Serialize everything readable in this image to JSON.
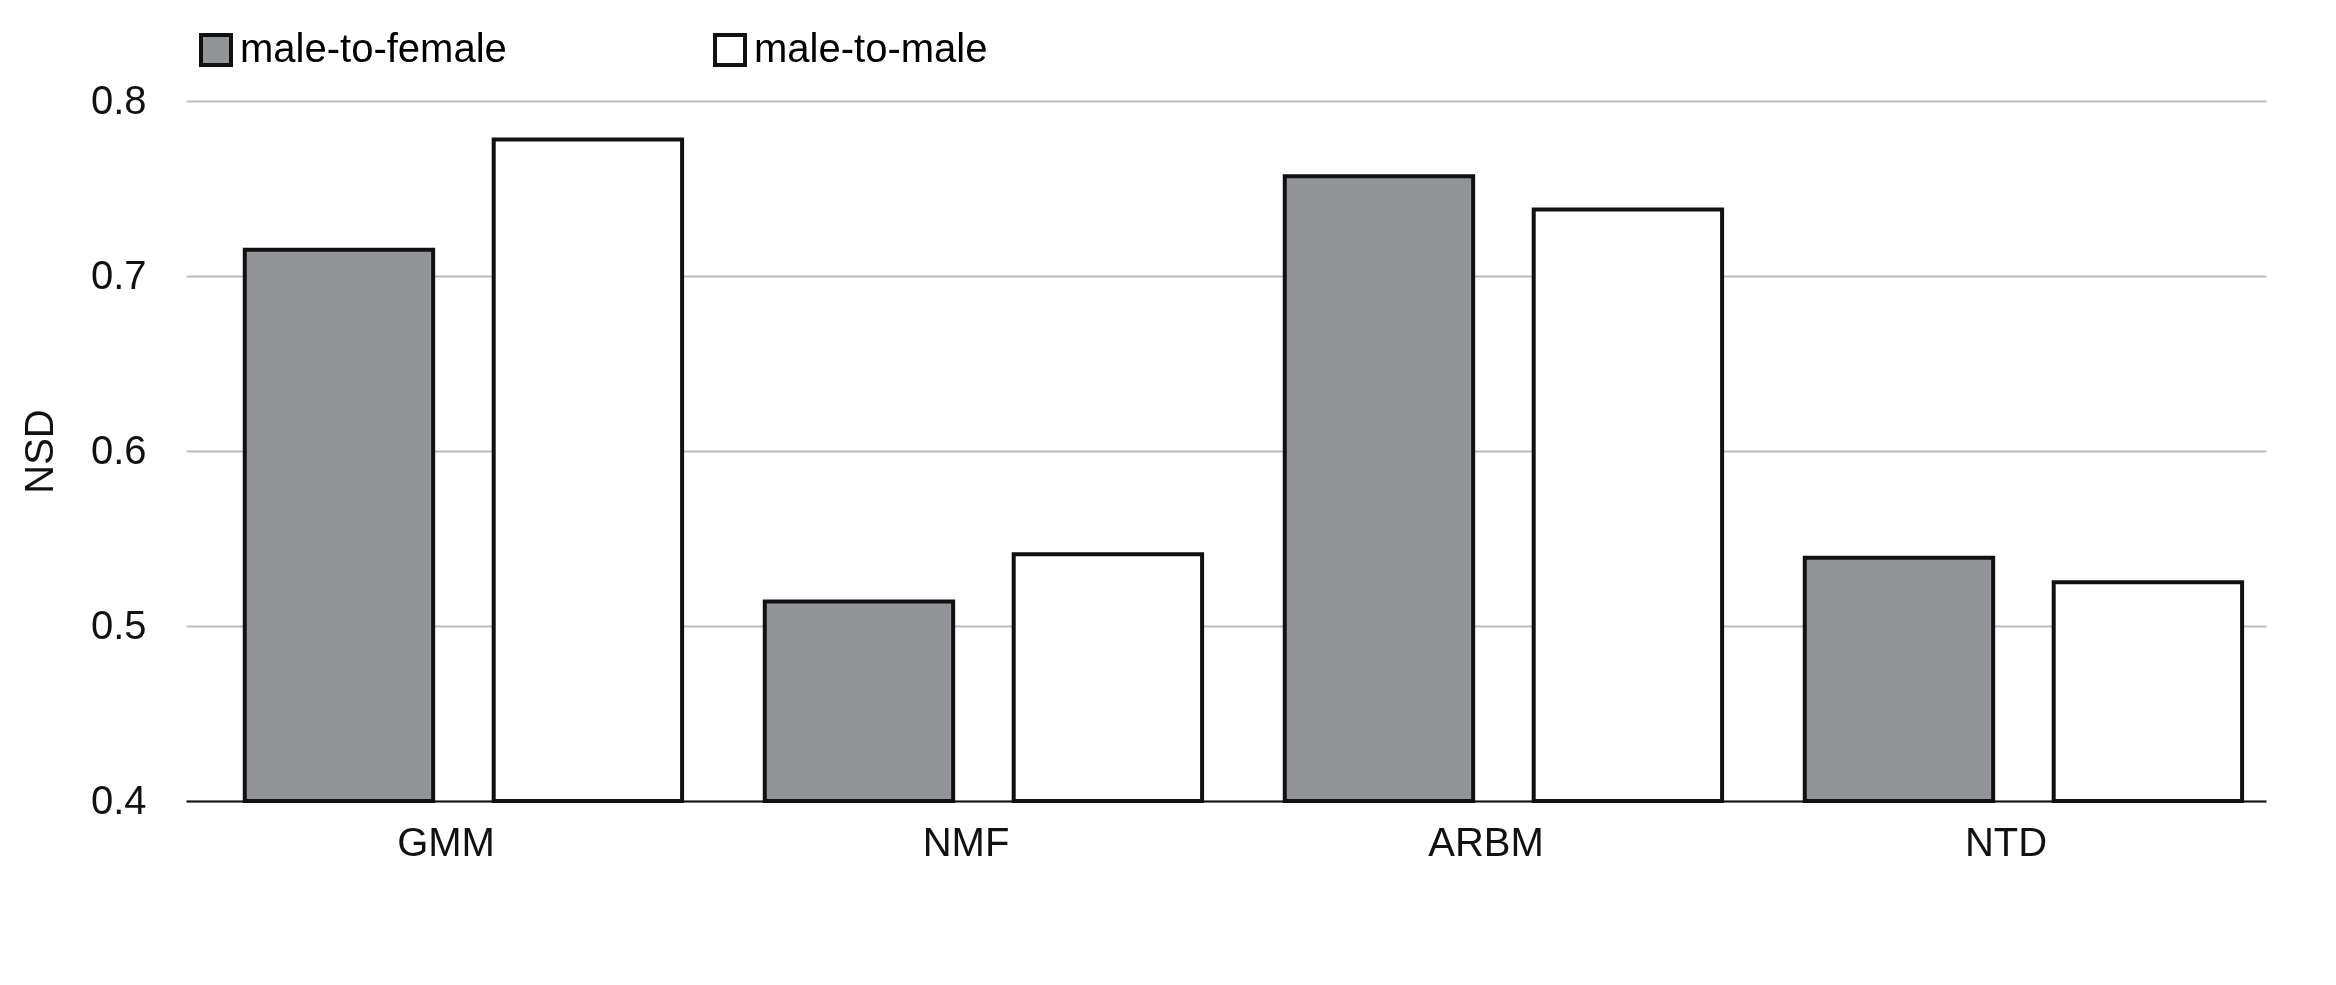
{
  "chart_data": {
    "type": "bar",
    "ylabel": "NSD",
    "categories": [
      "GMM",
      "NMF",
      "ARBM",
      "NTD"
    ],
    "series": [
      {
        "name": "male-to-female",
        "color": "#929497",
        "values": [
          0.715,
          0.514,
          0.757,
          0.539
        ]
      },
      {
        "name": "male-to-male",
        "color": "#ffffff",
        "values": [
          0.778,
          0.541,
          0.738,
          0.525
        ]
      }
    ],
    "ylim": [
      0.4,
      0.8
    ],
    "yticks": [
      0.4,
      0.5,
      0.6,
      0.7,
      0.8
    ],
    "grid": "y",
    "legend": "top"
  }
}
